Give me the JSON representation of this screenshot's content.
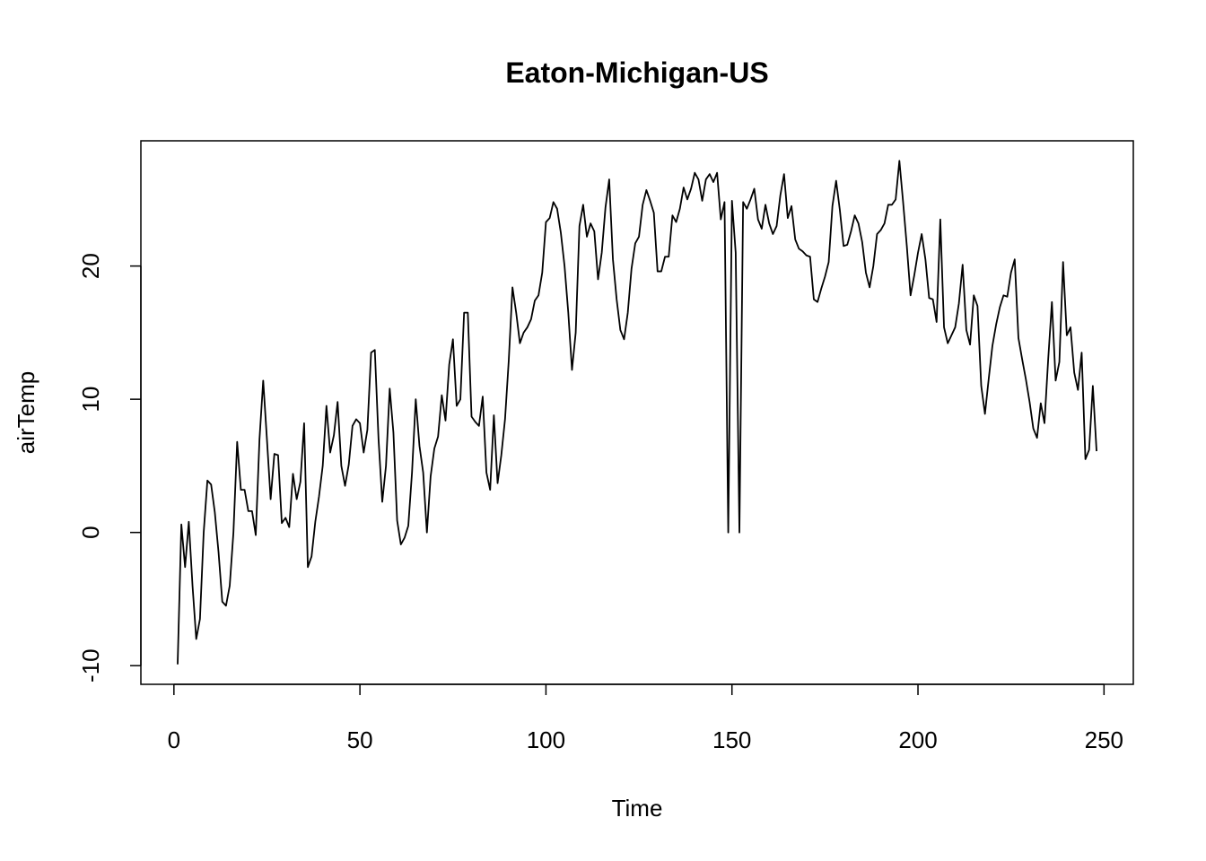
{
  "chart_data": {
    "type": "line",
    "title": "Eaton-Michigan-US",
    "xlabel": "Time",
    "ylabel": "airTemp",
    "x": [
      1,
      2,
      3,
      4,
      5,
      6,
      7,
      8,
      9,
      10,
      11,
      12,
      13,
      14,
      15,
      16,
      17,
      18,
      19,
      20,
      21,
      22,
      23,
      24,
      25,
      26,
      27,
      28,
      29,
      30,
      31,
      32,
      33,
      34,
      35,
      36,
      37,
      38,
      39,
      40,
      41,
      42,
      43,
      44,
      45,
      46,
      47,
      48,
      49,
      50,
      51,
      52,
      53,
      54,
      55,
      56,
      57,
      58,
      59,
      60,
      61,
      62,
      63,
      64,
      65,
      66,
      67,
      68,
      69,
      70,
      71,
      72,
      73,
      74,
      75,
      76,
      77,
      78,
      79,
      80,
      81,
      82,
      83,
      84,
      85,
      86,
      87,
      88,
      89,
      90,
      91,
      92,
      93,
      94,
      95,
      96,
      97,
      98,
      99,
      100,
      101,
      102,
      103,
      104,
      105,
      106,
      107,
      108,
      109,
      110,
      111,
      112,
      113,
      114,
      115,
      116,
      117,
      118,
      119,
      120,
      121,
      122,
      123,
      124,
      125,
      126,
      127,
      128,
      129,
      130,
      131,
      132,
      133,
      134,
      135,
      136,
      137,
      138,
      139,
      140,
      141,
      142,
      143,
      144,
      145,
      146,
      147,
      148,
      149,
      150,
      151,
      152,
      153,
      154,
      155,
      156,
      157,
      158,
      159,
      160,
      161,
      162,
      163,
      164,
      165,
      166,
      167,
      168,
      169,
      170,
      171,
      172,
      173,
      174,
      175,
      176,
      177,
      178,
      179,
      180,
      181,
      182,
      183,
      184,
      185,
      186,
      187,
      188,
      189,
      190,
      191,
      192,
      193,
      194,
      195,
      196,
      197,
      198,
      199,
      200,
      201,
      202,
      203,
      204,
      205,
      206,
      207,
      208,
      209,
      210,
      211,
      212,
      213,
      214,
      215,
      216,
      217,
      218,
      219,
      220,
      221,
      222,
      223,
      224,
      225,
      226,
      227,
      228,
      229,
      230,
      231,
      232,
      233,
      234,
      235,
      236,
      237,
      238,
      239,
      240,
      241,
      242,
      243,
      244,
      245,
      246,
      247,
      248
    ],
    "series": [
      {
        "name": "airTemp",
        "color": "#000000",
        "values": [
          -9.9,
          0.6,
          -2.6,
          0.8,
          -4,
          -8,
          -6.5,
          0,
          3.9,
          3.6,
          1.5,
          -1.5,
          -5.2,
          -5.5,
          -4,
          0,
          6.8,
          3.2,
          3.2,
          1.6,
          1.6,
          -0.2,
          7,
          11.4,
          7,
          2.5,
          5.9,
          5.8,
          0.7,
          1.1,
          0.4,
          4.4,
          2.5,
          3.8,
          8.2,
          -2.6,
          -1.8,
          0.8,
          2.7,
          5,
          9.5,
          6,
          7.3,
          9.8,
          5,
          3.5,
          5.1,
          8,
          8.5,
          8.2,
          6,
          7.7,
          13.5,
          13.7,
          7,
          2.3,
          5,
          10.8,
          7.5,
          0.9,
          -0.9,
          -0.4,
          0.5,
          4.5,
          10,
          6.5,
          4.5,
          0,
          4.2,
          6.3,
          7.2,
          10.3,
          8.4,
          12.6,
          14.5,
          9.5,
          10,
          16.5,
          16.5,
          8.7,
          8.3,
          8,
          10.2,
          4.5,
          3.2,
          8.8,
          3.7,
          5.8,
          8.5,
          12.9,
          18.4,
          16.5,
          14.2,
          15,
          15.4,
          16,
          17.4,
          17.8,
          19.5,
          23.3,
          23.6,
          24.8,
          24.3,
          22.5,
          20,
          16.5,
          12.2,
          15,
          23,
          24.6,
          22.2,
          23.2,
          22.6,
          19,
          21,
          24.4,
          26.5,
          20.5,
          17.5,
          15.2,
          14.5,
          16.5,
          19.8,
          21.7,
          22.2,
          24.6,
          25.7,
          24.9,
          24,
          19.6,
          19.6,
          20.7,
          20.7,
          23.8,
          23.3,
          24.3,
          25.9,
          25,
          25.8,
          27,
          26.5,
          24.9,
          26.5,
          26.9,
          26.3,
          27,
          23.5,
          24.8,
          0,
          24.9,
          21,
          0,
          24.8,
          24.3,
          25,
          25.8,
          23.5,
          22.8,
          24.6,
          23.2,
          22.4,
          23,
          25.3,
          26.9,
          23.6,
          24.5,
          22,
          21.3,
          21.1,
          20.8,
          20.7,
          17.5,
          17.3,
          18.3,
          19.2,
          20.3,
          24.5,
          26.4,
          24.2,
          21.5,
          21.6,
          22.6,
          23.8,
          23.2,
          21.8,
          19.5,
          18.4,
          20,
          22.4,
          22.7,
          23.2,
          24.6,
          24.6,
          25,
          27.9,
          24.8,
          21.5,
          17.8,
          19.3,
          21,
          22.4,
          20.5,
          17.6,
          17.5,
          15.8,
          23.5,
          15.4,
          14.2,
          14.8,
          15.4,
          17.2,
          20.1,
          15.2,
          14.1,
          17.8,
          17,
          11,
          8.9,
          11.5,
          14,
          15.6,
          16.9,
          17.8,
          17.7,
          19.5,
          20.5,
          14.6,
          13,
          11.5,
          9.8,
          7.8,
          7.1,
          9.7,
          8.2,
          13,
          17.3,
          11.4,
          12.8,
          20.3,
          14.8,
          15.4,
          12,
          10.7,
          13.5,
          5.5,
          6.2,
          11,
          6.1
        ]
      }
    ],
    "xlim": [
      -8.88,
      257.88
    ],
    "xticks": [
      0,
      50,
      100,
      150,
      200,
      250
    ],
    "ylim": [
      -11.4,
      29.4
    ],
    "yticks": [
      -10,
      0,
      10,
      20
    ]
  }
}
